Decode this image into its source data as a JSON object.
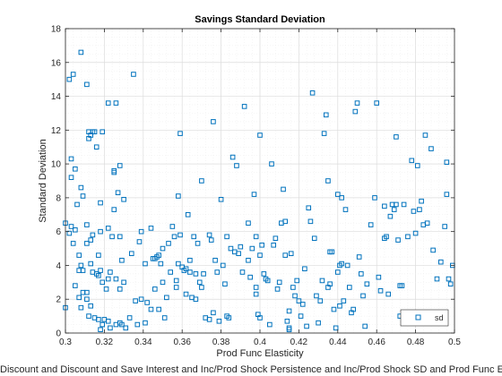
{
  "chart_data": {
    "type": "scatter",
    "title": "Savings Standard Deviation",
    "xlabel": "Prod Func Elasticity",
    "ylabel": "Standard Deviation",
    "caption": "Discount and Discount and Save Interest and Inc/Prod Shock Persistence and Inc/Prod Shock SD and Prod Func Elasticity a",
    "xlim": [
      0.3,
      0.5
    ],
    "ylim": [
      0,
      18
    ],
    "xticks": [
      0.3,
      0.32,
      0.34,
      0.36,
      0.38,
      0.4,
      0.42,
      0.44,
      0.46,
      0.48,
      0.5
    ],
    "xtick_labels": [
      "0.3",
      "0.32",
      "0.34",
      "0.36",
      "0.38",
      "0.4",
      "0.42",
      "0.44",
      "0.46",
      "0.48",
      "0.5"
    ],
    "yticks": [
      0,
      2,
      4,
      6,
      8,
      10,
      12,
      14,
      16,
      18
    ],
    "ytick_labels": [
      "0",
      "2",
      "4",
      "6",
      "8",
      "10",
      "12",
      "14",
      "16",
      "18"
    ],
    "grid": true,
    "legend_position": "bottom-right",
    "marker": "square",
    "color": "#0072BD",
    "series": [
      {
        "name": "sd",
        "points": [
          [
            0.3,
            6.5
          ],
          [
            0.3,
            1.5
          ],
          [
            0.302,
            15.0
          ],
          [
            0.302,
            5.9
          ],
          [
            0.303,
            10.3
          ],
          [
            0.303,
            9.2
          ],
          [
            0.303,
            6.3
          ],
          [
            0.304,
            15.3
          ],
          [
            0.304,
            5.3
          ],
          [
            0.305,
            9.7
          ],
          [
            0.305,
            6.1
          ],
          [
            0.305,
            2.8
          ],
          [
            0.306,
            7.6
          ],
          [
            0.307,
            4.6
          ],
          [
            0.307,
            3.7
          ],
          [
            0.307,
            2.1
          ],
          [
            0.308,
            16.6
          ],
          [
            0.308,
            8.6
          ],
          [
            0.308,
            4.0
          ],
          [
            0.308,
            1.5
          ],
          [
            0.309,
            8.1
          ],
          [
            0.309,
            3.7
          ],
          [
            0.309,
            2.4
          ],
          [
            0.311,
            14.7
          ],
          [
            0.311,
            6.4
          ],
          [
            0.311,
            5.3
          ],
          [
            0.311,
            2.4
          ],
          [
            0.311,
            2.0
          ],
          [
            0.312,
            11.9
          ],
          [
            0.312,
            11.5
          ],
          [
            0.312,
            1.0
          ],
          [
            0.313,
            11.7
          ],
          [
            0.313,
            5.5
          ],
          [
            0.313,
            4.1
          ],
          [
            0.313,
            1.6
          ],
          [
            0.314,
            11.9
          ],
          [
            0.314,
            5.8
          ],
          [
            0.314,
            3.6
          ],
          [
            0.315,
            11.9
          ],
          [
            0.315,
            0.9
          ],
          [
            0.316,
            11.0
          ],
          [
            0.316,
            3.5
          ],
          [
            0.317,
            4.6
          ],
          [
            0.317,
            3.4
          ],
          [
            0.317,
            0.8
          ],
          [
            0.318,
            7.7
          ],
          [
            0.318,
            6.0
          ],
          [
            0.318,
            3.7
          ],
          [
            0.318,
            0.2
          ],
          [
            0.319,
            11.9
          ],
          [
            0.319,
            3.0
          ],
          [
            0.319,
            0.5
          ],
          [
            0.32,
            0.8
          ],
          [
            0.321,
            2.6
          ],
          [
            0.322,
            13.6
          ],
          [
            0.322,
            6.2
          ],
          [
            0.322,
            3.2
          ],
          [
            0.322,
            0.7
          ],
          [
            0.323,
            3.6
          ],
          [
            0.323,
            0.3
          ],
          [
            0.324,
            5.7
          ],
          [
            0.325,
            9.6
          ],
          [
            0.325,
            9.5
          ],
          [
            0.325,
            7.3
          ],
          [
            0.326,
            13.6
          ],
          [
            0.326,
            3.2
          ],
          [
            0.326,
            0.5
          ],
          [
            0.327,
            8.3
          ],
          [
            0.328,
            9.9
          ],
          [
            0.328,
            5.7
          ],
          [
            0.328,
            2.6
          ],
          [
            0.328,
            0.6
          ],
          [
            0.329,
            4.3
          ],
          [
            0.329,
            0.5
          ],
          [
            0.33,
            7.9
          ],
          [
            0.33,
            3.0
          ],
          [
            0.331,
            0.3
          ],
          [
            0.333,
            0.9
          ],
          [
            0.334,
            4.7
          ],
          [
            0.335,
            15.3
          ],
          [
            0.336,
            1.9
          ],
          [
            0.337,
            0.5
          ],
          [
            0.338,
            5.4
          ],
          [
            0.339,
            6.0
          ],
          [
            0.339,
            2.0
          ],
          [
            0.341,
            4.1
          ],
          [
            0.341,
            0.6
          ],
          [
            0.342,
            1.8
          ],
          [
            0.344,
            6.2
          ],
          [
            0.344,
            1.4
          ],
          [
            0.345,
            4.4
          ],
          [
            0.346,
            2.6
          ],
          [
            0.346,
            4.4
          ],
          [
            0.347,
            4.5
          ],
          [
            0.348,
            4.6
          ],
          [
            0.348,
            1.4
          ],
          [
            0.349,
            4.1
          ],
          [
            0.35,
            3.0
          ],
          [
            0.35,
            5.0
          ],
          [
            0.351,
            0.9
          ],
          [
            0.352,
            2.1
          ],
          [
            0.353,
            5.3
          ],
          [
            0.354,
            3.6
          ],
          [
            0.355,
            6.3
          ],
          [
            0.356,
            5.7
          ],
          [
            0.357,
            3.1
          ],
          [
            0.357,
            2.7
          ],
          [
            0.358,
            8.1
          ],
          [
            0.358,
            4.1
          ],
          [
            0.359,
            11.8
          ],
          [
            0.359,
            5.8
          ],
          [
            0.36,
            3.9
          ],
          [
            0.361,
            3.7
          ],
          [
            0.362,
            3.8
          ],
          [
            0.362,
            2.3
          ],
          [
            0.363,
            7.0
          ],
          [
            0.364,
            4.3
          ],
          [
            0.364,
            3.6
          ],
          [
            0.365,
            2.1
          ],
          [
            0.366,
            5.7
          ],
          [
            0.367,
            2.0
          ],
          [
            0.367,
            3.5
          ],
          [
            0.368,
            5.3
          ],
          [
            0.369,
            3.0
          ],
          [
            0.37,
            9.0
          ],
          [
            0.37,
            2.7
          ],
          [
            0.371,
            3.5
          ],
          [
            0.372,
            0.9
          ],
          [
            0.374,
            0.8
          ],
          [
            0.374,
            5.8
          ],
          [
            0.375,
            5.5
          ],
          [
            0.376,
            12.5
          ],
          [
            0.376,
            1.2
          ],
          [
            0.377,
            4.3
          ],
          [
            0.378,
            3.6
          ],
          [
            0.379,
            0.7
          ],
          [
            0.38,
            7.9
          ],
          [
            0.381,
            4.0
          ],
          [
            0.382,
            2.9
          ],
          [
            0.383,
            5.7
          ],
          [
            0.383,
            1.0
          ],
          [
            0.384,
            0.9
          ],
          [
            0.385,
            5.0
          ],
          [
            0.386,
            10.4
          ],
          [
            0.387,
            4.8
          ],
          [
            0.388,
            9.9
          ],
          [
            0.389,
            4.7
          ],
          [
            0.39,
            5.1
          ],
          [
            0.391,
            3.6
          ],
          [
            0.392,
            13.4
          ],
          [
            0.394,
            6.5
          ],
          [
            0.394,
            4.3
          ],
          [
            0.395,
            3.3
          ],
          [
            0.396,
            5.0
          ],
          [
            0.397,
            8.2
          ],
          [
            0.398,
            5.7
          ],
          [
            0.398,
            2.7
          ],
          [
            0.398,
            2.3
          ],
          [
            0.399,
            1.1
          ],
          [
            0.4,
            11.7
          ],
          [
            0.4,
            4.6
          ],
          [
            0.4,
            0.9
          ],
          [
            0.401,
            5.2
          ],
          [
            0.402,
            3.5
          ],
          [
            0.403,
            3.2
          ],
          [
            0.404,
            3.1
          ],
          [
            0.405,
            0.5
          ],
          [
            0.406,
            10.0
          ],
          [
            0.407,
            5.2
          ],
          [
            0.408,
            5.6
          ],
          [
            0.409,
            2.6
          ],
          [
            0.41,
            3.0
          ],
          [
            0.411,
            6.5
          ],
          [
            0.412,
            8.5
          ],
          [
            0.413,
            6.6
          ],
          [
            0.413,
            4.6
          ],
          [
            0.414,
            0.7
          ],
          [
            0.415,
            1.3
          ],
          [
            0.415,
            0.3
          ],
          [
            0.415,
            0.2
          ],
          [
            0.416,
            4.7
          ],
          [
            0.417,
            2.7
          ],
          [
            0.418,
            2.2
          ],
          [
            0.419,
            3.1
          ],
          [
            0.42,
            1.9
          ],
          [
            0.421,
            1.0
          ],
          [
            0.422,
            1.7
          ],
          [
            0.423,
            3.8
          ],
          [
            0.424,
            0.4
          ],
          [
            0.425,
            7.4
          ],
          [
            0.426,
            6.6
          ],
          [
            0.427,
            14.2
          ],
          [
            0.428,
            5.6
          ],
          [
            0.429,
            2.2
          ],
          [
            0.43,
            0.6
          ],
          [
            0.431,
            1.9
          ],
          [
            0.432,
            3.1
          ],
          [
            0.433,
            11.8
          ],
          [
            0.434,
            12.9
          ],
          [
            0.435,
            9.0
          ],
          [
            0.435,
            2.7
          ],
          [
            0.436,
            4.8
          ],
          [
            0.436,
            2.9
          ],
          [
            0.437,
            4.8
          ],
          [
            0.438,
            1.4
          ],
          [
            0.439,
            0.3
          ],
          [
            0.44,
            8.2
          ],
          [
            0.44,
            3.6
          ],
          [
            0.441,
            4.0
          ],
          [
            0.441,
            1.6
          ],
          [
            0.442,
            8.0
          ],
          [
            0.442,
            4.1
          ],
          [
            0.443,
            1.9
          ],
          [
            0.444,
            7.3
          ],
          [
            0.445,
            4.0
          ],
          [
            0.446,
            2.7
          ],
          [
            0.447,
            1.2
          ],
          [
            0.448,
            1.4
          ],
          [
            0.449,
            13.1
          ],
          [
            0.45,
            13.6
          ],
          [
            0.451,
            4.5
          ],
          [
            0.452,
            3.5
          ],
          [
            0.453,
            2.2
          ],
          [
            0.454,
            0.4
          ],
          [
            0.455,
            2.9
          ],
          [
            0.457,
            6.4
          ],
          [
            0.459,
            8.0
          ],
          [
            0.46,
            13.6
          ],
          [
            0.461,
            3.3
          ],
          [
            0.462,
            2.5
          ],
          [
            0.464,
            7.5
          ],
          [
            0.464,
            5.6
          ],
          [
            0.465,
            5.7
          ],
          [
            0.466,
            2.3
          ],
          [
            0.467,
            6.9
          ],
          [
            0.468,
            7.6
          ],
          [
            0.469,
            7.3
          ],
          [
            0.47,
            11.6
          ],
          [
            0.47,
            7.6
          ],
          [
            0.471,
            5.5
          ],
          [
            0.472,
            1.0
          ],
          [
            0.472,
            2.8
          ],
          [
            0.473,
            2.8
          ],
          [
            0.474,
            7.6
          ],
          [
            0.476,
            5.7
          ],
          [
            0.478,
            10.2
          ],
          [
            0.479,
            7.2
          ],
          [
            0.48,
            5.9
          ],
          [
            0.481,
            9.9
          ],
          [
            0.482,
            7.3
          ],
          [
            0.483,
            7.8
          ],
          [
            0.484,
            6.4
          ],
          [
            0.485,
            11.7
          ],
          [
            0.486,
            6.5
          ],
          [
            0.487,
            1.2
          ],
          [
            0.488,
            10.9
          ],
          [
            0.489,
            4.9
          ],
          [
            0.49,
            1.2
          ],
          [
            0.491,
            3.2
          ],
          [
            0.492,
            1.1
          ],
          [
            0.493,
            4.2
          ],
          [
            0.495,
            6.3
          ],
          [
            0.496,
            10.1
          ],
          [
            0.496,
            8.2
          ],
          [
            0.497,
            3.2
          ],
          [
            0.498,
            2.9
          ],
          [
            0.499,
            4.0
          ]
        ]
      }
    ]
  }
}
